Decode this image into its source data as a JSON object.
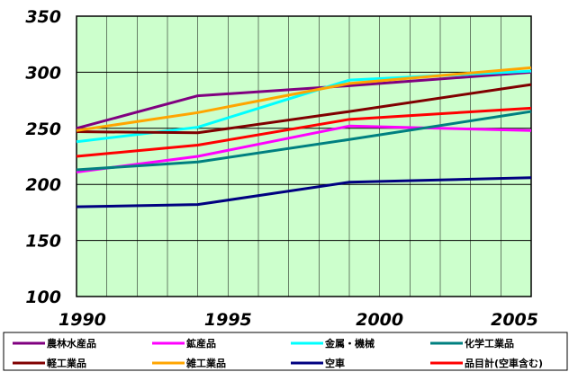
{
  "chart_data": {
    "type": "line",
    "title": "",
    "xlabel": "",
    "ylabel": "",
    "x": [
      1990,
      1994,
      1999,
      2005
    ],
    "x_ticks": [
      "1990",
      "1995",
      "2000",
      "2005"
    ],
    "x_tick_values": [
      1990,
      1995,
      2000,
      2005
    ],
    "xlim": [
      1990,
      2005
    ],
    "ylim": [
      100,
      350
    ],
    "y_ticks": [
      "100",
      "150",
      "200",
      "250",
      "300",
      "350"
    ],
    "y_tick_values": [
      100,
      150,
      200,
      250,
      300,
      350
    ],
    "grid": true,
    "plot_background": "#ccffcc",
    "legend_position": "bottom",
    "series": [
      {
        "name": "農林水産品",
        "color": "#800080",
        "values": [
          250,
          279,
          288,
          300
        ]
      },
      {
        "name": "鉱産品",
        "color": "#ff00ff",
        "values": [
          211,
          225,
          252,
          248
        ]
      },
      {
        "name": "金属・機械",
        "color": "#00ffff",
        "values": [
          238,
          251,
          293,
          301
        ]
      },
      {
        "name": "化学工業品",
        "color": "#008080",
        "values": [
          213,
          220,
          240,
          265
        ]
      },
      {
        "name": "軽工業品",
        "color": "#800000",
        "values": [
          247,
          246,
          265,
          289
        ]
      },
      {
        "name": "雑工業品",
        "color": "#ffa500",
        "values": [
          248,
          264,
          290,
          304
        ]
      },
      {
        "name": "空車",
        "color": "#000080",
        "values": [
          180,
          182,
          202,
          206
        ]
      },
      {
        "name": "品目計(空車含む)",
        "color": "#ff0000",
        "values": [
          225,
          235,
          258,
          268
        ]
      }
    ]
  }
}
